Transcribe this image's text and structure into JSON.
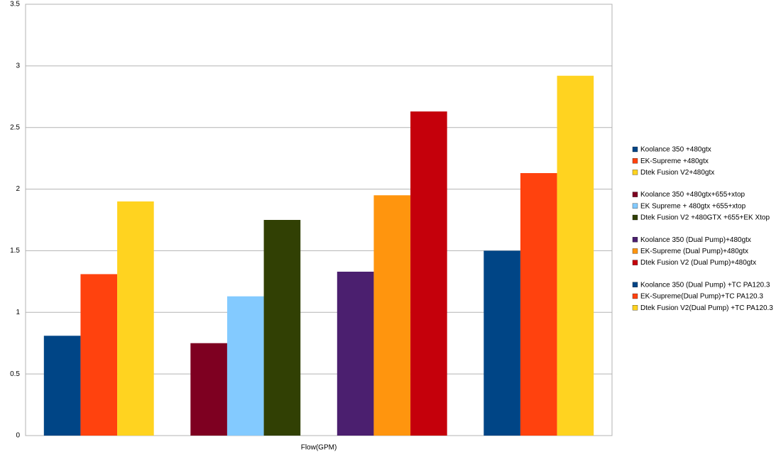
{
  "chart_data": {
    "type": "bar",
    "x_label": "Flow(GPM)",
    "categories": [
      null,
      null,
      null,
      null
    ],
    "ylim": [
      0,
      3.5
    ],
    "yticks": [
      0,
      0.5,
      1,
      1.5,
      2,
      2.5,
      3,
      3.5
    ],
    "grid": true,
    "legend": "right",
    "series": [
      {
        "name": "Koolance 350 +480gtx",
        "color": "#004586",
        "values": [
          0.81,
          null,
          null,
          null
        ]
      },
      {
        "name": "EK-Supreme +480gtx",
        "color": "#ff420e",
        "values": [
          1.31,
          null,
          null,
          null
        ]
      },
      {
        "name": "Dtek Fusion V2+480gtx",
        "color": "#ffd320",
        "values": [
          1.9,
          null,
          null,
          null
        ]
      },
      {
        "name": "Koolance 350 +480gtx+655+xtop",
        "color": "#7e0021",
        "values": [
          null,
          0.75,
          null,
          null
        ]
      },
      {
        "name": "EK Supreme + 480gtx +655+xtop",
        "color": "#83caff",
        "values": [
          null,
          1.13,
          null,
          null
        ]
      },
      {
        "name": "Dtek Fusion V2 +480GTX +655+EK Xtop",
        "color": "#314004",
        "values": [
          null,
          1.75,
          null,
          null
        ]
      },
      {
        "name": "Koolance 350 (Dual Pump)+480gtx",
        "color": "#4b1f6f",
        "values": [
          null,
          null,
          1.33,
          null
        ]
      },
      {
        "name": "EK-Supreme (Dual Pump)+480gtx",
        "color": "#ff950e",
        "values": [
          null,
          null,
          1.95,
          null
        ]
      },
      {
        "name": "Dtek Fusion V2 (Dual Pump)+480gtx",
        "color": "#c5000b",
        "values": [
          null,
          null,
          2.63,
          null
        ]
      },
      {
        "name": "Koolance 350 (Dual Pump) +TC PA120.3",
        "color": "#004586",
        "values": [
          null,
          null,
          null,
          1.5
        ]
      },
      {
        "name": "EK-Supreme(Dual Pump)+TC PA120.3",
        "color": "#ff420e",
        "values": [
          null,
          null,
          null,
          2.13
        ]
      },
      {
        "name": "Dtek Fusion V2(Dual Pump) +TC PA120.3",
        "color": "#ffd320",
        "values": [
          null,
          null,
          null,
          2.92
        ]
      }
    ]
  }
}
